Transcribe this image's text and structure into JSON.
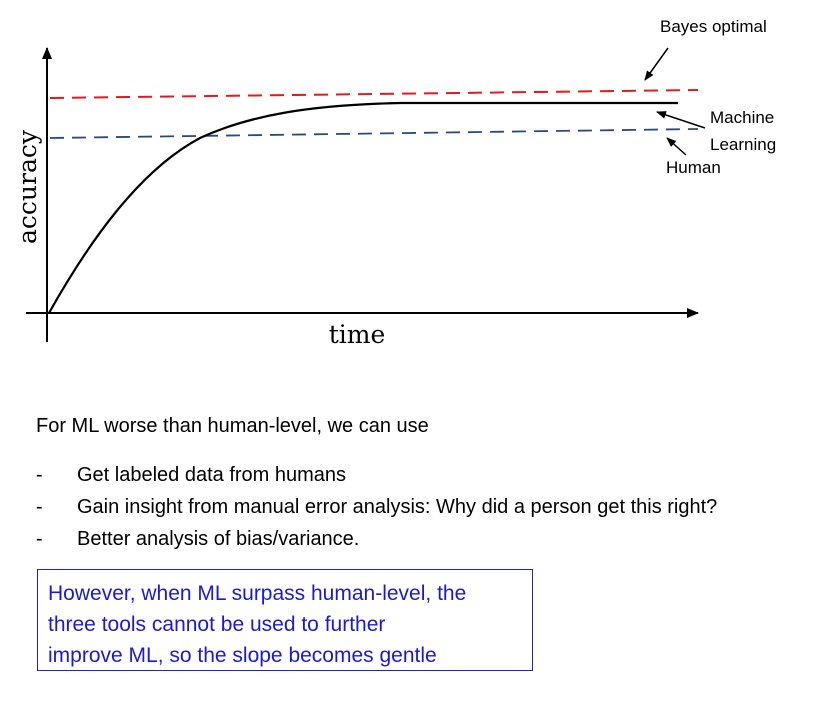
{
  "chart": {
    "y_axis_label": "accuracy",
    "x_axis_label": "time",
    "labels": {
      "bayes": "Bayes optimal",
      "ml_line1": "Machine",
      "ml_line2": "Learning",
      "human": "Human"
    },
    "colors": {
      "bayes_line": "#e01b1b",
      "human_line": "#2b4a7a",
      "ml_curve": "#000000",
      "axes": "#000000"
    }
  },
  "text": {
    "intro": "For ML worse than human-level, we can use",
    "bullets": [
      {
        "dash": "-",
        "text": "Get labeled data from humans"
      },
      {
        "dash": "-",
        "text": "Gain insight from manual error analysis: Why did a person get this right?"
      },
      {
        "dash": "-",
        "text": "Better analysis of bias/variance."
      }
    ],
    "note_lines": [
      "However, when ML surpass human-level, the",
      "three tools cannot be used to further",
      "improve ML, so the slope becomes gentle"
    ]
  }
}
